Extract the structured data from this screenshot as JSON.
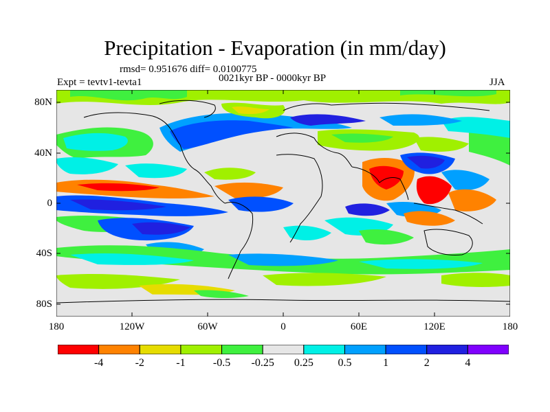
{
  "title": "Precipitation - Evaporation (in mm/day)",
  "stats": "rmsd= 0.951676 diff= 0.0100775",
  "experiment": "Expt = tevtv1-tevta1",
  "period": "0021kyr BP - 0000kyr BP",
  "season": "JJA",
  "lat_labels": [
    "80N",
    "40N",
    "0",
    "40S",
    "80S"
  ],
  "lon_labels": [
    "180",
    "120W",
    "60W",
    "0",
    "60E",
    "120E",
    "180"
  ],
  "colorbar": {
    "labels": [
      "-4",
      "-2",
      "-1",
      "-0.5",
      "-0.25",
      "0.25",
      "0.5",
      "1",
      "2",
      "4"
    ],
    "colors": [
      "#ff0000",
      "#ff8200",
      "#e6dc00",
      "#a0f000",
      "#3ff03f",
      "#e6e6e6",
      "#00f0e6",
      "#00a0ff",
      "#0050ff",
      "#2020e0",
      "#8000ff"
    ]
  }
}
